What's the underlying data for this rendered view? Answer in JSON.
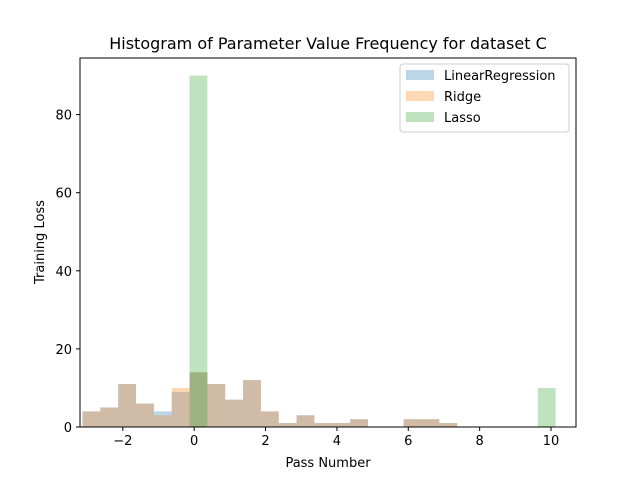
{
  "chart_data": {
    "type": "histogram",
    "title": "Histogram of Parameter Value Frequency for dataset C",
    "xlabel": "Pass Number",
    "ylabel": "Training Loss",
    "xlim": [
      -3.2,
      10.7
    ],
    "ylim": [
      0,
      94.5
    ],
    "xticks": [
      -2,
      0,
      2,
      4,
      6,
      8,
      10
    ],
    "xtick_labels": [
      "−2",
      "0",
      "2",
      "4",
      "6",
      "8",
      "10"
    ],
    "yticks": [
      0,
      20,
      40,
      60,
      80
    ],
    "ytick_labels": [
      "0",
      "20",
      "40",
      "60",
      "80"
    ],
    "legend_position": "top-right",
    "grid": false,
    "series": [
      {
        "name": "LinearRegression",
        "color": "#1f77b4",
        "bins": [
          {
            "x0": -3.13,
            "x1": -2.63,
            "count": 4
          },
          {
            "x0": -2.63,
            "x1": -2.13,
            "count": 5
          },
          {
            "x0": -2.13,
            "x1": -1.63,
            "count": 11
          },
          {
            "x0": -1.63,
            "x1": -1.13,
            "count": 6
          },
          {
            "x0": -1.13,
            "x1": -0.63,
            "count": 4
          },
          {
            "x0": -0.63,
            "x1": -0.13,
            "count": 9
          },
          {
            "x0": -0.13,
            "x1": 0.37,
            "count": 14
          },
          {
            "x0": 0.37,
            "x1": 0.87,
            "count": 11
          },
          {
            "x0": 0.87,
            "x1": 1.37,
            "count": 7
          },
          {
            "x0": 1.37,
            "x1": 1.87,
            "count": 12
          },
          {
            "x0": 1.87,
            "x1": 2.37,
            "count": 4
          },
          {
            "x0": 2.37,
            "x1": 2.87,
            "count": 1
          },
          {
            "x0": 2.87,
            "x1": 3.37,
            "count": 3
          },
          {
            "x0": 3.37,
            "x1": 3.87,
            "count": 1
          },
          {
            "x0": 3.87,
            "x1": 4.37,
            "count": 1
          },
          {
            "x0": 4.37,
            "x1": 4.87,
            "count": 2
          },
          {
            "x0": 5.87,
            "x1": 6.37,
            "count": 2
          },
          {
            "x0": 6.37,
            "x1": 6.87,
            "count": 2
          },
          {
            "x0": 6.87,
            "x1": 7.37,
            "count": 1
          }
        ]
      },
      {
        "name": "Ridge",
        "color": "#ff7f0e",
        "bins": [
          {
            "x0": -3.13,
            "x1": -2.63,
            "count": 4
          },
          {
            "x0": -2.63,
            "x1": -2.13,
            "count": 5
          },
          {
            "x0": -2.13,
            "x1": -1.63,
            "count": 11
          },
          {
            "x0": -1.63,
            "x1": -1.13,
            "count": 6
          },
          {
            "x0": -1.13,
            "x1": -0.63,
            "count": 3
          },
          {
            "x0": -0.63,
            "x1": -0.13,
            "count": 10
          },
          {
            "x0": -0.13,
            "x1": 0.37,
            "count": 14
          },
          {
            "x0": 0.37,
            "x1": 0.87,
            "count": 11
          },
          {
            "x0": 0.87,
            "x1": 1.37,
            "count": 7
          },
          {
            "x0": 1.37,
            "x1": 1.87,
            "count": 12
          },
          {
            "x0": 1.87,
            "x1": 2.37,
            "count": 4
          },
          {
            "x0": 2.37,
            "x1": 2.87,
            "count": 1
          },
          {
            "x0": 2.87,
            "x1": 3.37,
            "count": 3
          },
          {
            "x0": 3.37,
            "x1": 3.87,
            "count": 1
          },
          {
            "x0": 3.87,
            "x1": 4.37,
            "count": 1
          },
          {
            "x0": 4.37,
            "x1": 4.87,
            "count": 2
          },
          {
            "x0": 5.87,
            "x1": 6.37,
            "count": 2
          },
          {
            "x0": 6.37,
            "x1": 6.87,
            "count": 2
          },
          {
            "x0": 6.87,
            "x1": 7.37,
            "count": 1
          }
        ]
      },
      {
        "name": "Lasso",
        "color": "#2ca02c",
        "bins": [
          {
            "x0": -0.13,
            "x1": 0.37,
            "count": 90
          },
          {
            "x0": 9.63,
            "x1": 10.13,
            "count": 10
          }
        ]
      }
    ]
  }
}
